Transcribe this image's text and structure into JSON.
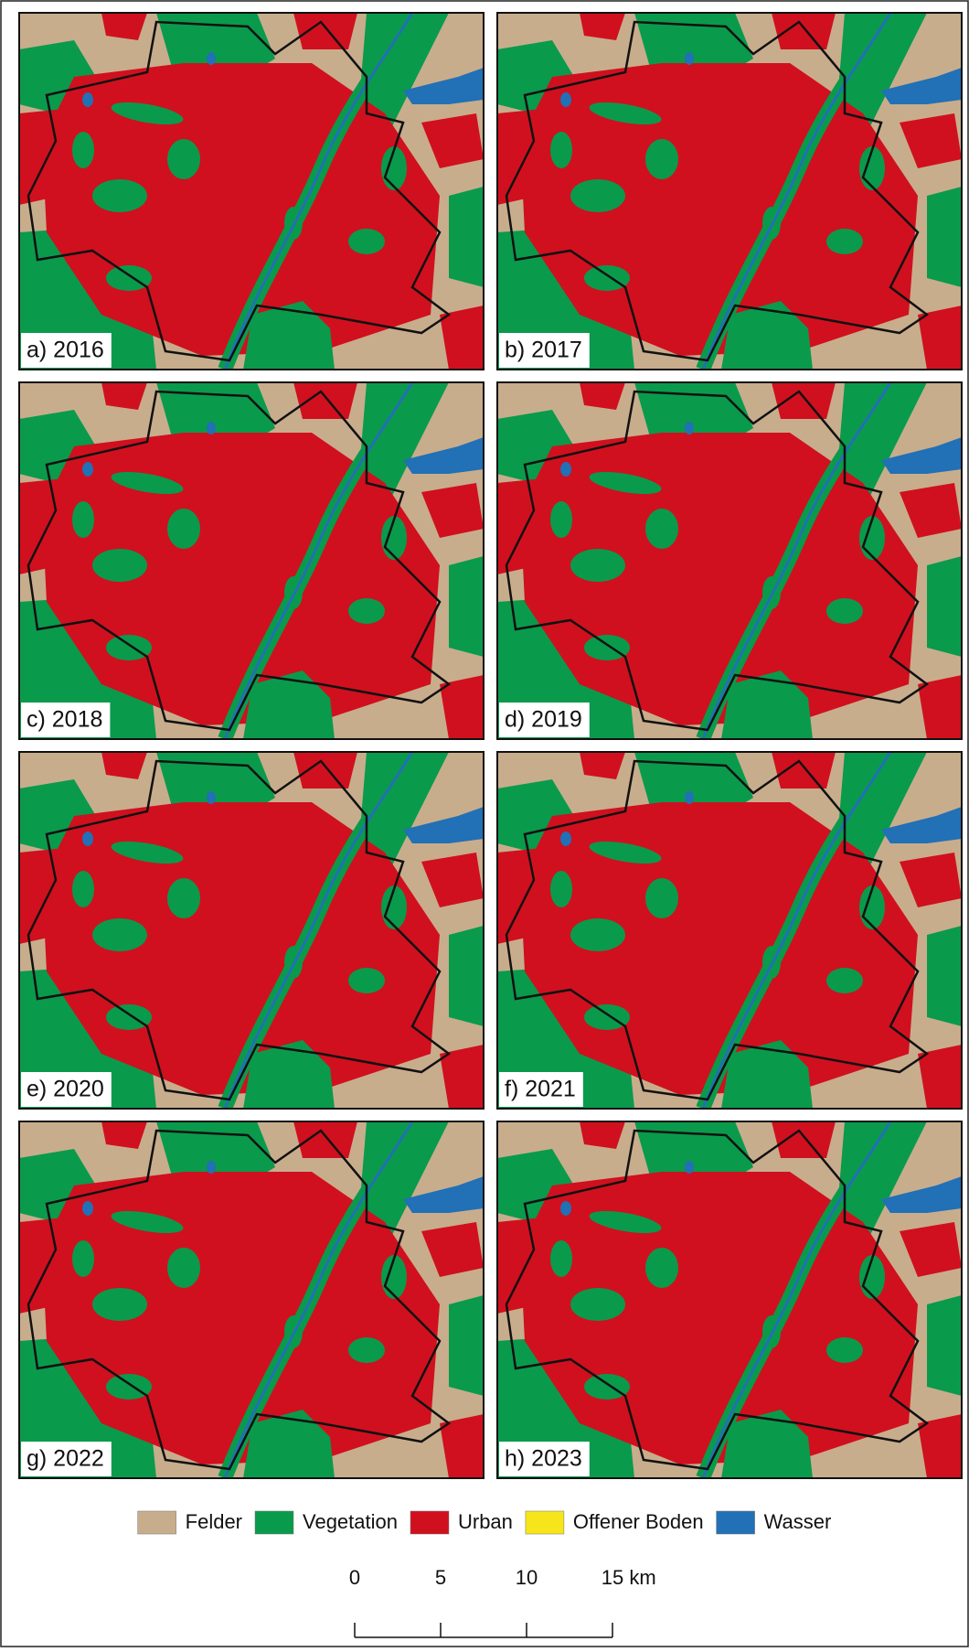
{
  "panels": [
    {
      "label": "a) 2016"
    },
    {
      "label": "b) 2017"
    },
    {
      "label": "c) 2018"
    },
    {
      "label": "d) 2019"
    },
    {
      "label": "e) 2020"
    },
    {
      "label": "f) 2021"
    },
    {
      "label": "g) 2022"
    },
    {
      "label": "h) 2023"
    }
  ],
  "legend": [
    {
      "name": "Felder",
      "color": "#c8ad8c"
    },
    {
      "name": "Vegetation",
      "color": "#0a9a4c"
    },
    {
      "name": "Urban",
      "color": "#d0101e"
    },
    {
      "name": "Offener Boden",
      "color": "#f7e51b"
    },
    {
      "name": "Wasser",
      "color": "#2270b5"
    }
  ],
  "scale_bar": {
    "ticks": [
      0,
      5,
      10,
      {
        "value": 15,
        "label": "15 km"
      }
    ]
  }
}
